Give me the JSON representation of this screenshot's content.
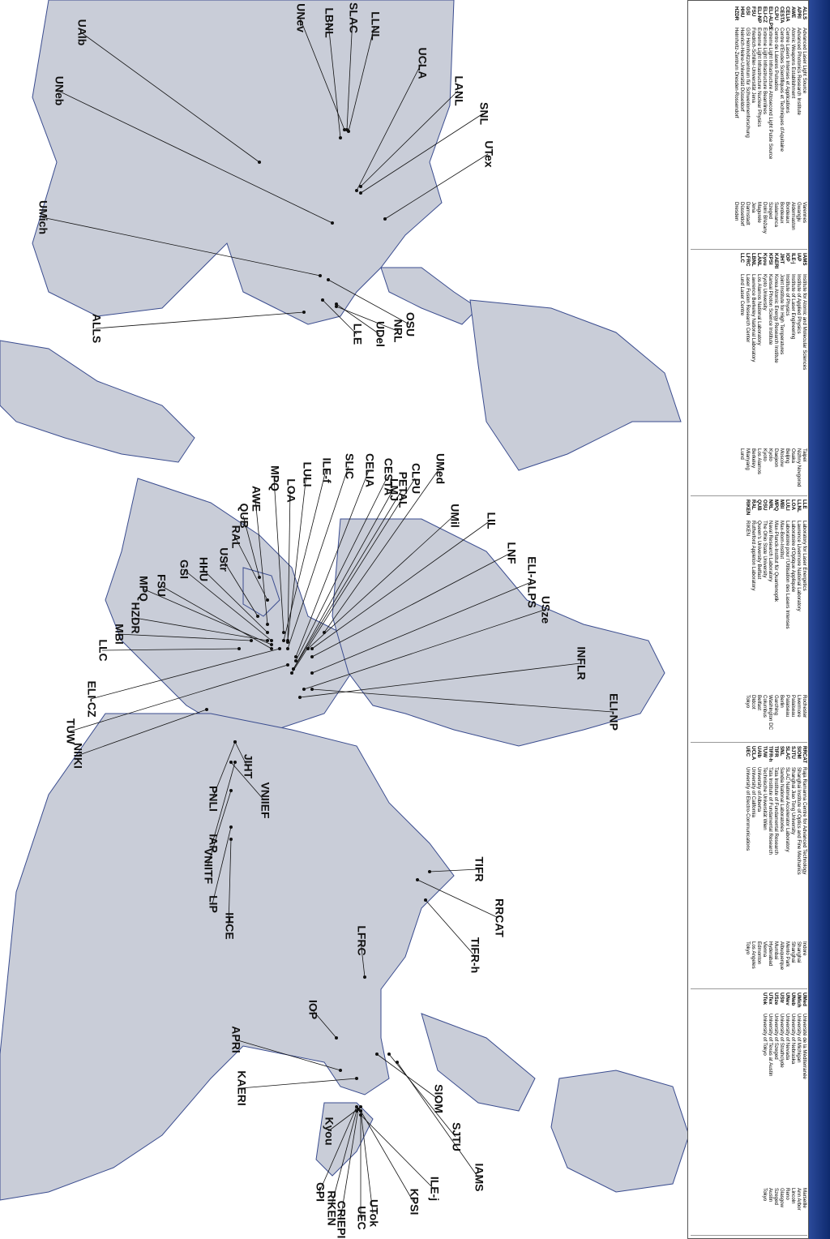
{
  "map": {
    "labels": [
      "UAlb",
      "UNev",
      "LBNL",
      "SLAC",
      "LLNL",
      "UCLA",
      "LANL",
      "SNL",
      "UTex",
      "UNeb",
      "UMich",
      "ALLS",
      "LLE",
      "UDel",
      "NRL",
      "OSU",
      "UMed",
      "CLPU",
      "LMJ",
      "PETAL",
      "CESTA",
      "CELIA",
      "SLIC",
      "ILE-f",
      "LULI",
      "LOA",
      "MPQ",
      "AWE",
      "QUB",
      "RAL",
      "UStr",
      "HHU",
      "GSI",
      "FSU",
      "MPQ",
      "HZDR",
      "MBI",
      "LLC",
      "ELI-CZ",
      "TUW",
      "NIIKI",
      "UMil",
      "LIL",
      "LNF",
      "ELI-ALPS",
      "USze",
      "INFLR",
      "ELI-NP",
      "JIHT",
      "PNLI",
      "IAP",
      "VNIIEF",
      "VNIITF",
      "LIP",
      "IHCE",
      "TIFR",
      "RRCAT",
      "TIFR-h",
      "LFRC",
      "IOP",
      "APRI",
      "KAERI",
      "SIOM",
      "SJTU",
      "IAMS",
      "ILE-j",
      "KPSI",
      "UTok",
      "UEC",
      "CRIEPI",
      "RIKEN",
      "GPI",
      "Kyou"
    ]
  },
  "legend": {
    "groups": [
      {
        "rows": [
          {
            "abbr": "ALLS",
            "name": "Advanced Laser Light Source",
            "city": "Varennes"
          },
          {
            "abbr": "APRI",
            "name": "Advanced Photonics Research Institute",
            "city": "Gwangju"
          },
          {
            "abbr": "AWE",
            "name": "Atomic Weapons Establishment",
            "city": "Aldermaston"
          },
          {
            "abbr": "CELIA",
            "name": "Centre Lasers Intenses et Applications",
            "city": "Bordeaux"
          },
          {
            "abbr": "CESTA",
            "name": "Centre d'Etudes Scientifiques et Techniques d'Aquitaine",
            "city": "Bordeaux"
          },
          {
            "abbr": "CLPU",
            "name": "Centro de Láseres Pulsados",
            "city": "Salamanca"
          },
          {
            "abbr": "ELI-ALPS",
            "name": "Extreme Light Infrastructure Attosecond Light Pulse Source",
            "city": "Szeged"
          },
          {
            "abbr": "ELI-CZ",
            "name": "Extreme Light Infrastructure Beamlines",
            "city": "Dolní Břežany"
          },
          {
            "abbr": "ELI-NP",
            "name": "Extreme Light Infrastructure Nuclear Physics",
            "city": "Magurele"
          },
          {
            "abbr": "FSU",
            "name": "Friedrich-Schiller-Universität Jena",
            "city": "Jena"
          },
          {
            "abbr": "GSI",
            "name": "GSI Helmholtzzentrum für Schwerionenforschung",
            "city": "Darmstadt"
          },
          {
            "abbr": "HHU",
            "name": "Heinrich-Heine-Universität Düsseldorf",
            "city": "Düsseldorf"
          },
          {
            "abbr": "HZDR",
            "name": "Helmholtz-Zentrum Dresden-Rossendorf",
            "city": "Dresden"
          }
        ]
      },
      {
        "rows": [
          {
            "abbr": "IAMS",
            "name": "Institute for Atomic and Molecular Sciences",
            "city": "Taipei"
          },
          {
            "abbr": "IAP",
            "name": "Institute of Applied Physics",
            "city": "Nizhny Novgorod"
          },
          {
            "abbr": "ILE-j",
            "name": "Institute of Laser Engineering",
            "city": "Osaka"
          },
          {
            "abbr": "IOP",
            "name": "Institute of Physics",
            "city": "Beijing"
          },
          {
            "abbr": "JIHT",
            "name": "Joint Institute for High Temperatures",
            "city": "Moscow"
          },
          {
            "abbr": "KAERI",
            "name": "Korea Atomic Energy Research Institute",
            "city": "Daejeon"
          },
          {
            "abbr": "KPSI",
            "name": "Kansai Photon Science Institute",
            "city": "Kyoto"
          },
          {
            "abbr": "Kyou",
            "name": "Kyoto University",
            "city": "Kyoto"
          },
          {
            "abbr": "LANL",
            "name": "Los Alamos National Laboratory",
            "city": "Los Alamos"
          },
          {
            "abbr": "LBNL",
            "name": "Lawrence Berkeley National Laboratory",
            "city": "Berkeley"
          },
          {
            "abbr": "LFRC",
            "name": "Laser Fusion Research Center",
            "city": "Mianyang"
          },
          {
            "abbr": "LLC",
            "name": "Lund Laser Centre",
            "city": "Lund"
          }
        ]
      },
      {
        "rows": [
          {
            "abbr": "LLE",
            "name": "Laboratory for Laser Energetics",
            "city": "Rochester"
          },
          {
            "abbr": "LLNL",
            "name": "Lawrence Livermore National Laboratory",
            "city": "Livermore"
          },
          {
            "abbr": "LOA",
            "name": "Laboratoire d'Optique Appliquée",
            "city": "Palaiseau"
          },
          {
            "abbr": "LULI",
            "name": "Laboratoire pour l'Utilisation des Lasers Intenses",
            "city": "Palaiseau"
          },
          {
            "abbr": "MBI",
            "name": "Max-Born-Institut",
            "city": "Berlin"
          },
          {
            "abbr": "MPQ",
            "name": "Max-Planck-Institut für Quantenoptik",
            "city": "Garching"
          },
          {
            "abbr": "NRL",
            "name": "Naval Research Laboratory",
            "city": "Washington DC"
          },
          {
            "abbr": "OSU",
            "name": "The Ohio State University",
            "city": "Columbus"
          },
          {
            "abbr": "QUB",
            "name": "Queen's University Belfast",
            "city": "Belfast"
          },
          {
            "abbr": "RAL",
            "name": "Rutherford Appleton Laboratory",
            "city": "Didcot"
          },
          {
            "abbr": "RIKEN",
            "name": "RIKEN",
            "city": "Tokyo"
          }
        ]
      },
      {
        "rows": [
          {
            "abbr": "RRCAT",
            "name": "Raja Ramanna Centre for Advanced Technology",
            "city": "Indore"
          },
          {
            "abbr": "SIOM",
            "name": "Shanghai Institute of Optics and Fine Mechanics",
            "city": "Shanghai"
          },
          {
            "abbr": "SJTU",
            "name": "Shanghai Jiao Tong University",
            "city": "Shanghai"
          },
          {
            "abbr": "SLAC",
            "name": "SLAC National Accelerator Laboratory",
            "city": "Menlo Park"
          },
          {
            "abbr": "SNL",
            "name": "Sandia National Laboratories",
            "city": "Albuquerque"
          },
          {
            "abbr": "TIFR",
            "name": "Tata Institute of Fundamental Research",
            "city": "Mumbai"
          },
          {
            "abbr": "TIFR-h",
            "name": "Tata Institute of Fundamental Research",
            "city": "Hyderabad"
          },
          {
            "abbr": "TUW",
            "name": "Technische Universität Wien",
            "city": "Vienna"
          },
          {
            "abbr": "UAlb",
            "name": "University of Alberta",
            "city": "Edmonton"
          },
          {
            "abbr": "UCLA",
            "name": "University of California",
            "city": "Los Angeles"
          },
          {
            "abbr": "UEC",
            "name": "University of Electro-Communications",
            "city": "Tokyo"
          }
        ]
      },
      {
        "rows": [
          {
            "abbr": "UMed",
            "name": "Université de la Méditerranée",
            "city": "Marseille"
          },
          {
            "abbr": "UMich",
            "name": "University of Michigan",
            "city": "Ann Arbor"
          },
          {
            "abbr": "UNeb",
            "name": "University of Nebraska",
            "city": "Lincoln"
          },
          {
            "abbr": "UNev",
            "name": "University of Nevada",
            "city": "Reno"
          },
          {
            "abbr": "UStr",
            "name": "University of Strathclyde",
            "city": "Glasgow"
          },
          {
            "abbr": "USze",
            "name": "University of Szeged",
            "city": "Szeged"
          },
          {
            "abbr": "UTex",
            "name": "University of Texas at Austin",
            "city": "Austin"
          },
          {
            "abbr": "UTok",
            "name": "University of Tokyo",
            "city": "Tokyo"
          }
        ]
      }
    ]
  }
}
